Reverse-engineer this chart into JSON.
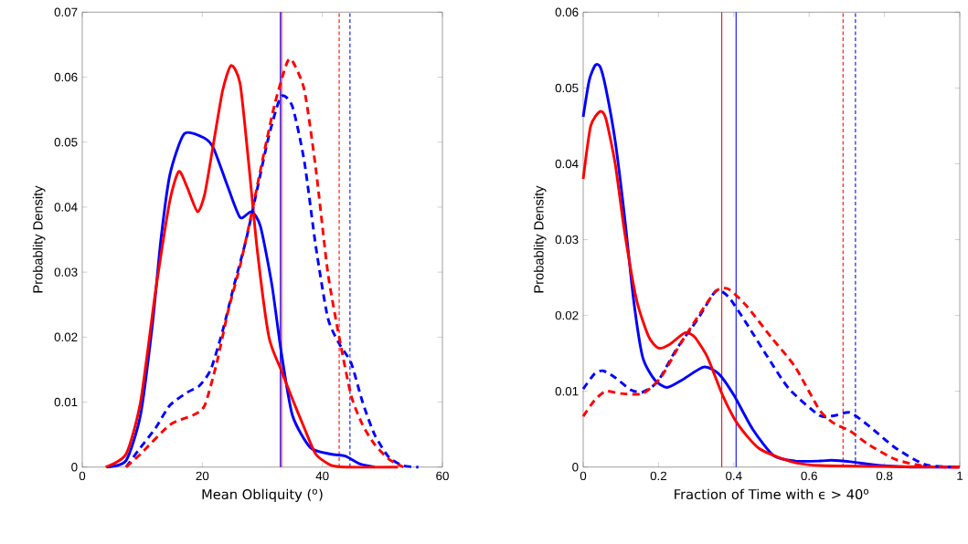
{
  "chart_data": [
    {
      "type": "line",
      "xlabel": "Mean Obliquity ($^{o}$)",
      "ylabel": "Probablity Density",
      "xlim": [
        0,
        60
      ],
      "ylim": [
        0,
        0.07
      ],
      "xticks": [
        0,
        20,
        40,
        60
      ],
      "yticks": [
        0,
        0.01,
        0.02,
        0.03,
        0.04,
        0.05,
        0.06,
        0.07
      ],
      "series": [
        {
          "color": "#0000ff",
          "line_style": "solid",
          "x": [
            4.1,
            7.3,
            9.7,
            11.7,
            13.1,
            14.6,
            17,
            20.4,
            21.9,
            24.3,
            26.3,
            28.2,
            29.7,
            31.6,
            33.1,
            35,
            38,
            41.4,
            43.8,
            46.2,
            48.7
          ],
          "values": [
            0,
            0.001,
            0.008,
            0.022,
            0.035,
            0.045,
            0.0513,
            0.0506,
            0.049,
            0.043,
            0.0384,
            0.0393,
            0.037,
            0.028,
            0.018,
            0.008,
            0.003,
            0.002,
            0.0017,
            0.0005,
            0
          ]
        },
        {
          "color": "#ff0000",
          "line_style": "solid",
          "x": [
            3.9,
            7.3,
            9.7,
            12.2,
            14.6,
            16.1,
            17.5,
            19.2,
            20.4,
            21.9,
            23.4,
            24.8,
            26.3,
            27.7,
            29.2,
            31.1,
            33.1,
            35,
            37,
            38.9,
            41.4,
            43.8,
            52.6
          ],
          "values": [
            0,
            0.002,
            0.01,
            0.027,
            0.041,
            0.0455,
            0.043,
            0.0393,
            0.042,
            0.05,
            0.058,
            0.0618,
            0.059,
            0.047,
            0.033,
            0.02,
            0.015,
            0.0105,
            0.006,
            0.002,
            0.0003,
            0,
            0
          ]
        },
        {
          "color": "#0000ff",
          "line_style": "dashed",
          "x": [
            7.3,
            9.7,
            12.2,
            14.6,
            17.5,
            19.5,
            21.4,
            23.4,
            25.3,
            27.3,
            29.2,
            31.1,
            33.1,
            35,
            37,
            38.9,
            40.9,
            42.8,
            44.8,
            46.7,
            48.7,
            51.1,
            53.5,
            56
          ],
          "values": [
            0,
            0.003,
            0.006,
            0.0095,
            0.0115,
            0.0125,
            0.015,
            0.021,
            0.028,
            0.035,
            0.043,
            0.051,
            0.057,
            0.0555,
            0.047,
            0.034,
            0.023,
            0.019,
            0.016,
            0.01,
            0.005,
            0.0015,
            0.0002,
            0
          ]
        },
        {
          "color": "#ff0000",
          "line_style": "dashed",
          "x": [
            7.3,
            9.7,
            14.6,
            18.5,
            20.4,
            22.4,
            24.3,
            26.3,
            28.2,
            30.2,
            32.1,
            34.1,
            35,
            37,
            38.9,
            40.9,
            42.8,
            44.8,
            46.7,
            48.7,
            51.1,
            53.5
          ],
          "values": [
            0,
            0.002,
            0.0065,
            0.008,
            0.0095,
            0.016,
            0.024,
            0.031,
            0.039,
            0.048,
            0.056,
            0.0622,
            0.0625,
            0.058,
            0.046,
            0.03,
            0.02,
            0.011,
            0.0065,
            0.0035,
            0.0012,
            0
          ]
        }
      ],
      "ref_lines": [
        {
          "axis": "x",
          "value": 33.0,
          "color": "#0000ff",
          "line_style": "solid"
        },
        {
          "axis": "x",
          "value": 33.2,
          "color": "#ff0000",
          "line_style": "solid"
        },
        {
          "axis": "x",
          "value": 42.8,
          "color": "#ff0000",
          "line_style": "dashed"
        },
        {
          "axis": "x",
          "value": 44.6,
          "color": "#0000ff",
          "line_style": "dashed"
        }
      ]
    },
    {
      "type": "line",
      "xlabel": "Fraction of Time with ϵ > 40$^{o}$",
      "ylabel": "Probablity Density",
      "xlim": [
        0,
        1
      ],
      "ylim": [
        0,
        0.06
      ],
      "xticks": [
        0,
        0.2,
        0.4,
        0.6,
        0.8,
        1
      ],
      "yticks": [
        0,
        0.01,
        0.02,
        0.03,
        0.04,
        0.05,
        0.06
      ],
      "series": [
        {
          "color": "#0000ff",
          "line_style": "solid",
          "x": [
            0,
            0.016,
            0.032,
            0.045,
            0.06,
            0.085,
            0.11,
            0.134,
            0.158,
            0.19,
            0.223,
            0.263,
            0.32,
            0.36,
            0.4,
            0.45,
            0.506,
            0.563,
            0.63,
            0.66,
            0.71,
            0.79,
            0.87,
            1
          ],
          "values": [
            0.0462,
            0.051,
            0.053,
            0.0528,
            0.05,
            0.043,
            0.033,
            0.022,
            0.0145,
            0.0115,
            0.0105,
            0.0115,
            0.0132,
            0.0123,
            0.0095,
            0.005,
            0.0015,
            0.0008,
            0.0008,
            0.0009,
            0.0007,
            0.0002,
            0,
            0
          ]
        },
        {
          "color": "#ff0000",
          "line_style": "solid",
          "x": [
            0,
            0.02,
            0.045,
            0.06,
            0.085,
            0.11,
            0.142,
            0.174,
            0.2,
            0.23,
            0.27,
            0.295,
            0.33,
            0.37,
            0.41,
            0.466,
            0.547,
            0.63,
            1
          ],
          "values": [
            0.038,
            0.045,
            0.0469,
            0.046,
            0.04,
            0.031,
            0.022,
            0.0172,
            0.0157,
            0.0162,
            0.0177,
            0.0172,
            0.0145,
            0.0095,
            0.0057,
            0.0025,
            0.0008,
            0.0002,
            0
          ]
        },
        {
          "color": "#0000ff",
          "line_style": "dashed",
          "x": [
            0,
            0.03,
            0.053,
            0.085,
            0.126,
            0.158,
            0.198,
            0.247,
            0.304,
            0.352,
            0.385,
            0.433,
            0.49,
            0.547,
            0.628,
            0.668,
            0.708,
            0.757,
            0.83,
            0.91,
            1
          ],
          "values": [
            0.0103,
            0.0123,
            0.0127,
            0.0118,
            0.0102,
            0.0099,
            0.0113,
            0.0155,
            0.0195,
            0.0232,
            0.0225,
            0.019,
            0.0145,
            0.0103,
            0.0068,
            0.0068,
            0.0072,
            0.0055,
            0.0025,
            0.0003,
            0
          ]
        },
        {
          "color": "#ff0000",
          "line_style": "dashed",
          "x": [
            0,
            0.03,
            0.06,
            0.1,
            0.158,
            0.206,
            0.255,
            0.304,
            0.352,
            0.385,
            0.433,
            0.498,
            0.563,
            0.628,
            0.668,
            0.708,
            0.757,
            0.83,
            0.91,
            1
          ],
          "values": [
            0.0067,
            0.0088,
            0.01,
            0.0097,
            0.0097,
            0.0118,
            0.016,
            0.0198,
            0.0232,
            0.0235,
            0.0213,
            0.0172,
            0.0132,
            0.0075,
            0.0057,
            0.0048,
            0.003,
            0.001,
            0.0001,
            0
          ]
        }
      ],
      "ref_lines": [
        {
          "axis": "x",
          "value": 0.368,
          "color": "#ff0000",
          "line_style": "solid"
        },
        {
          "axis": "x",
          "value": 0.406,
          "color": "#0000ff",
          "line_style": "solid"
        },
        {
          "axis": "x",
          "value": 0.69,
          "color": "#ff0000",
          "line_style": "dashed"
        },
        {
          "axis": "x",
          "value": 0.723,
          "color": "#0000ff",
          "line_style": "dashed"
        }
      ]
    }
  ]
}
